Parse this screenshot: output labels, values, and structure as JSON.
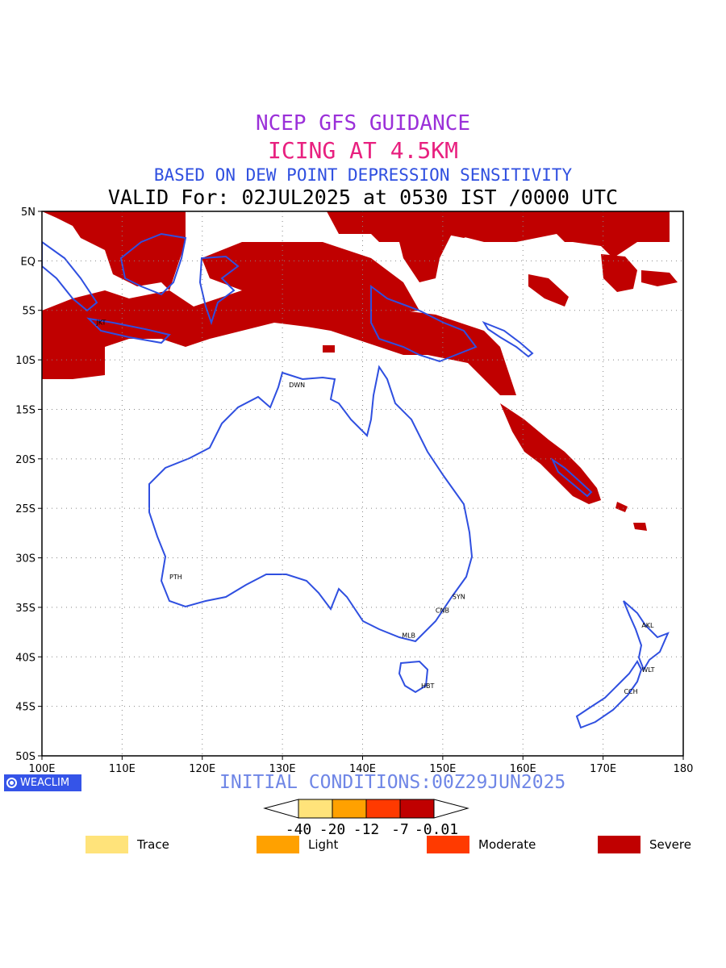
{
  "titles": {
    "line1": "NCEP GFS GUIDANCE",
    "line2": "ICING AT 4.5KM",
    "line3": "BASED ON DEW POINT DEPRESSION SENSITIVITY",
    "line4": "VALID For: 02JUL2025 at 0530 IST /0000 UTC"
  },
  "map": {
    "lon_range": [
      100,
      180
    ],
    "lat_range": [
      -50,
      5
    ],
    "lon_ticks": [
      "100E",
      "110E",
      "120E",
      "130E",
      "140E",
      "150E",
      "160E",
      "170E",
      "180"
    ],
    "lat_ticks": [
      "5N",
      "EQ",
      "5S",
      "10S",
      "15S",
      "20S",
      "25S",
      "30S",
      "35S",
      "40S",
      "45S",
      "50S"
    ],
    "coast_color": "#2f4fe0",
    "icing_color": "#c00000",
    "cities": [
      {
        "code": "JKT",
        "lon": 106.8,
        "lat": -6.2
      },
      {
        "code": "DWN",
        "lon": 130.8,
        "lat": -12.5
      },
      {
        "code": "PTH",
        "lon": 115.9,
        "lat": -31.9
      },
      {
        "code": "SYN",
        "lon": 151.2,
        "lat": -33.9
      },
      {
        "code": "CNB",
        "lon": 149.1,
        "lat": -35.3
      },
      {
        "code": "MLB",
        "lon": 144.9,
        "lat": -37.8
      },
      {
        "code": "HBT",
        "lon": 147.3,
        "lat": -42.9
      },
      {
        "code": "AKL",
        "lon": 174.8,
        "lat": -36.8
      },
      {
        "code": "WLT",
        "lon": 174.8,
        "lat": -41.3
      },
      {
        "code": "CCH",
        "lon": 172.6,
        "lat": -43.5
      }
    ]
  },
  "logo": {
    "text": "WEACLIM"
  },
  "initial_conditions": "INITIAL CONDITIONS:00Z29JUN2025",
  "colorbar": {
    "labels": [
      "-40",
      "-20",
      "-12",
      "-7",
      "-0.01"
    ],
    "colors": [
      "#ffe37a",
      "#ffa100",
      "#ff3a00",
      "#c00000"
    ]
  },
  "legend": [
    {
      "label": "Trace",
      "color": "#ffe37a"
    },
    {
      "label": "Light",
      "color": "#ffa100"
    },
    {
      "label": "Moderate",
      "color": "#ff3a00"
    },
    {
      "label": "Severe",
      "color": "#c00000"
    }
  ]
}
